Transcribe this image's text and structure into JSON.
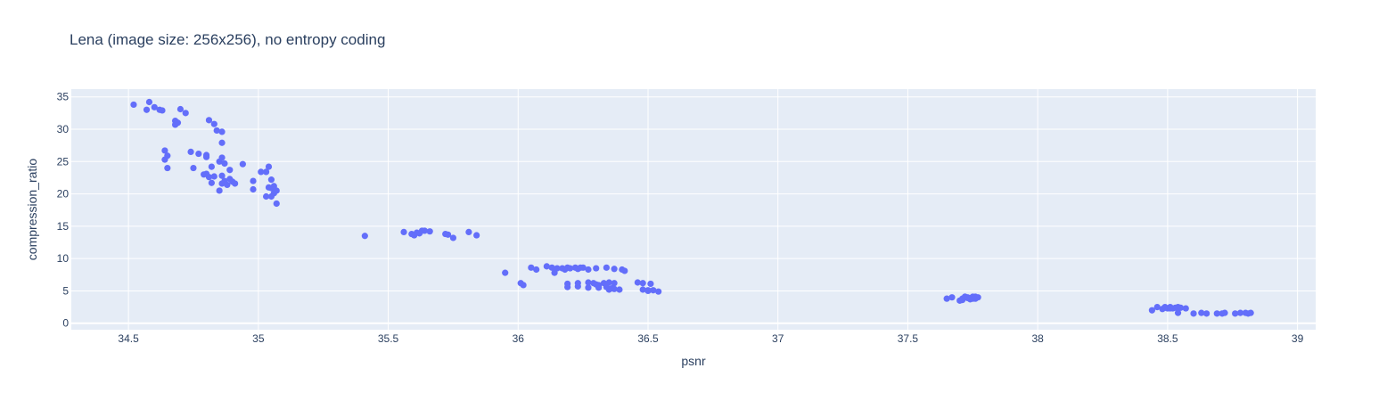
{
  "chart_data": {
    "type": "scatter",
    "title": "Lena (image size: 256x256), no entropy coding",
    "xlabel": "psnr",
    "ylabel": "compression_ratio",
    "xlim": [
      34.28,
      39.07
    ],
    "ylim": [
      -1.0,
      36.2
    ],
    "xticks": [
      34.5,
      35,
      35.5,
      36,
      36.5,
      37,
      37.5,
      38,
      38.5,
      39
    ],
    "yticks": [
      0,
      5,
      10,
      15,
      20,
      25,
      30,
      35
    ],
    "grid": true,
    "colors": {
      "plot_bg": "#e5ecf6",
      "marker": "#636efa"
    },
    "series": [
      {
        "x": [
          34.52,
          34.57,
          34.58,
          34.6,
          34.62,
          34.63,
          34.68,
          34.7,
          34.72,
          34.68,
          34.69,
          34.81,
          34.83,
          34.84,
          34.86,
          34.86,
          34.64,
          34.65,
          34.64,
          34.65,
          34.74,
          34.77,
          34.8,
          34.8,
          34.75,
          34.82,
          34.86,
          34.87,
          34.85,
          34.89,
          34.94,
          34.79,
          34.81,
          34.8,
          34.83,
          34.86,
          34.82,
          34.86,
          34.88,
          34.9,
          34.89,
          34.87,
          34.91,
          34.85,
          34.98,
          34.98,
          35.01,
          35.03,
          35.04,
          35.04,
          35.05,
          35.05,
          35.06,
          35.07,
          35.03,
          35.05,
          35.06,
          35.07,
          35.41,
          35.56,
          35.59,
          35.6,
          35.61,
          35.63,
          35.64,
          35.62,
          35.66,
          35.72,
          35.73,
          35.75,
          35.81,
          35.84,
          35.95,
          36.02,
          36.01,
          36.05,
          36.07,
          36.11,
          36.13,
          36.14,
          36.15,
          36.17,
          36.18,
          36.19,
          36.2,
          36.22,
          36.23,
          36.24,
          36.25,
          36.27,
          36.3,
          36.34,
          36.37,
          36.4,
          36.41,
          36.19,
          36.19,
          36.23,
          36.23,
          36.27,
          36.27,
          36.29,
          36.3,
          36.31,
          36.31,
          36.33,
          36.34,
          36.35,
          36.36,
          36.37,
          36.35,
          36.37,
          36.39,
          36.46,
          36.48,
          36.5,
          36.51,
          36.48,
          36.5,
          36.52,
          36.54,
          37.65,
          37.67,
          37.7,
          37.71,
          37.72,
          37.73,
          37.74,
          37.75,
          37.76,
          37.77,
          37.72,
          37.74,
          37.76,
          37.71,
          37.73,
          37.75,
          38.44,
          38.46,
          38.48,
          38.49,
          38.5,
          38.51,
          38.52,
          38.53,
          38.54,
          38.55,
          38.49,
          38.51,
          38.57,
          38.54,
          38.6,
          38.63,
          38.65,
          38.69,
          38.71,
          38.72,
          38.76,
          38.78,
          38.8,
          38.81,
          38.82
        ],
        "y": [
          33.8,
          33.0,
          34.2,
          33.4,
          33.0,
          32.9,
          31.3,
          33.1,
          32.5,
          30.7,
          31.0,
          31.4,
          30.8,
          29.8,
          29.6,
          27.9,
          26.7,
          25.9,
          25.3,
          24.0,
          26.5,
          26.2,
          26.0,
          25.7,
          24.0,
          24.2,
          25.6,
          24.7,
          25.0,
          23.7,
          24.6,
          23.0,
          22.6,
          23.1,
          22.7,
          22.8,
          21.7,
          21.6,
          21.4,
          21.9,
          22.3,
          22.0,
          21.6,
          20.5,
          22.0,
          20.7,
          23.4,
          23.4,
          24.2,
          21.0,
          22.2,
          20.9,
          21.2,
          20.5,
          19.6,
          19.6,
          20.1,
          18.5,
          13.5,
          14.1,
          13.8,
          13.6,
          14.0,
          14.3,
          14.3,
          13.9,
          14.2,
          13.8,
          13.7,
          13.2,
          14.1,
          13.6,
          7.8,
          5.9,
          6.2,
          8.6,
          8.3,
          8.8,
          8.6,
          7.8,
          8.5,
          8.5,
          8.3,
          8.6,
          8.5,
          8.6,
          8.4,
          8.6,
          8.6,
          8.3,
          8.5,
          8.6,
          8.4,
          8.3,
          8.1,
          6.1,
          5.6,
          6.2,
          5.7,
          6.3,
          5.5,
          6.2,
          6.0,
          5.9,
          5.5,
          6.2,
          5.6,
          6.3,
          5.4,
          6.2,
          5.2,
          5.3,
          5.2,
          6.3,
          6.2,
          5.1,
          6.1,
          5.2,
          5.0,
          5.1,
          4.9,
          3.8,
          4.0,
          3.5,
          3.8,
          4.1,
          3.9,
          3.7,
          4.1,
          3.8,
          4.0,
          4.1,
          3.9,
          4.1,
          3.6,
          4.0,
          3.8,
          2.0,
          2.5,
          2.2,
          2.4,
          2.3,
          2.5,
          2.3,
          2.4,
          2.5,
          2.4,
          2.5,
          2.3,
          2.3,
          1.6,
          1.5,
          1.6,
          1.5,
          1.5,
          1.5,
          1.6,
          1.5,
          1.6,
          1.6,
          1.5,
          1.6
        ]
      }
    ]
  }
}
